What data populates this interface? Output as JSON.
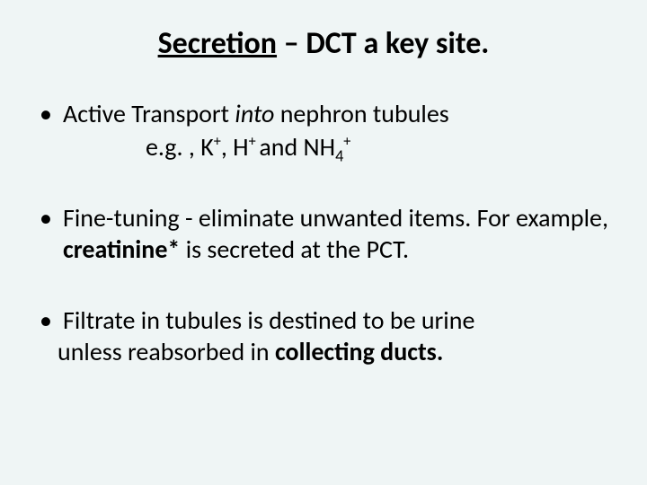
{
  "background_color": "#eff5f5",
  "text_color": "#000000",
  "font_family": "Calibri",
  "title": {
    "underlined": "Secretion",
    "rest": " – DCT a key site.",
    "font_size_pt": 34,
    "weight": "bold",
    "align": "center"
  },
  "bullets": {
    "font_size_pt": 28,
    "items": [
      {
        "line1_pre": "Active Transport ",
        "line1_italic": "into",
        "line1_post": " nephron tubules",
        "subline_pre": "e.g. , K",
        "sup1": "+",
        "sub_mid1": ", H",
        "sup2": "+ ",
        "sub_mid2": "and NH",
        "sub4": "4",
        "sup3": "+"
      },
      {
        "pre": "Fine-tuning - eliminate unwanted items. For example, ",
        "bold": "creatinine*",
        "post": " is secreted at the PCT."
      },
      {
        "line1": "Filtrate in tubules is destined to be urine",
        "line2_pre": "  unless reabsorbed in ",
        "line2_bold": "collecting ducts.",
        "line2_post": ""
      }
    ]
  }
}
